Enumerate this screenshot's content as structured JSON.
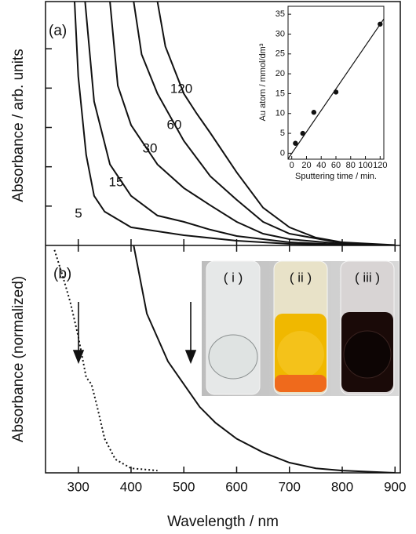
{
  "chart_data": [
    {
      "type": "line",
      "label": "(a)",
      "y_label": "Absorbance / arb. units",
      "xlim": [
        238,
        910
      ],
      "ylim": [
        0,
        6.2
      ],
      "yticks": [
        1,
        2,
        3,
        4,
        5
      ],
      "series": [
        {
          "name": "5",
          "color": "#111111",
          "x": [
            293,
            300,
            315,
            330,
            350,
            400,
            500,
            600,
            700,
            800,
            900
          ],
          "values": [
            6.2,
            4.3,
            2.3,
            1.26,
            0.86,
            0.46,
            0.26,
            0.12,
            0.04,
            0.01,
            0
          ]
        },
        {
          "name": "15",
          "color": "#111111",
          "x": [
            313,
            330,
            360,
            400,
            450,
            500,
            550,
            600,
            700,
            800,
            900
          ],
          "values": [
            6.2,
            3.66,
            2.06,
            1.26,
            0.76,
            0.6,
            0.4,
            0.24,
            0.08,
            0.02,
            0
          ]
        },
        {
          "name": "30",
          "color": "#111111",
          "x": [
            360,
            375,
            400,
            450,
            500,
            550,
            600,
            650,
            700,
            800,
            900
          ],
          "values": [
            6.2,
            4.06,
            3.06,
            2.06,
            1.46,
            1.02,
            0.6,
            0.3,
            0.16,
            0.04,
            0
          ]
        },
        {
          "name": "60",
          "color": "#111111",
          "x": [
            405,
            420,
            450,
            500,
            550,
            600,
            650,
            700,
            800,
            900
          ],
          "values": [
            6.2,
            4.86,
            3.86,
            2.66,
            1.76,
            1.16,
            0.6,
            0.3,
            0.06,
            0
          ]
        },
        {
          "name": "120",
          "color": "#111111",
          "x": [
            450,
            465,
            500,
            524,
            550,
            600,
            650,
            700,
            750,
            800,
            900
          ],
          "values": [
            6.2,
            5.06,
            3.86,
            3.36,
            2.86,
            1.86,
            0.96,
            0.46,
            0.2,
            0.08,
            0.01
          ]
        }
      ]
    },
    {
      "type": "scatter",
      "x_label": "Sputtering time / min.",
      "y_label": "Au atom / mmol/dm³",
      "xlim": [
        -5,
        125
      ],
      "ylim": [
        -1.5,
        37
      ],
      "xticks": [
        0,
        20,
        40,
        60,
        80,
        100,
        120
      ],
      "yticks": [
        0,
        5,
        10,
        15,
        20,
        25,
        30,
        35
      ],
      "x": [
        5,
        15,
        30,
        60,
        120
      ],
      "values": [
        2.5,
        5,
        10.3,
        15.4,
        32.5
      ],
      "color": "#111111",
      "fit": {
        "x": [
          -5,
          125
        ],
        "values": [
          -1.4,
          33.8
        ]
      }
    },
    {
      "type": "line",
      "label": "(b)",
      "y_label": "Absorbance (normalized)",
      "x_label": "Wavelength / nm",
      "xlim": [
        238,
        910
      ],
      "ylim": [
        0,
        1
      ],
      "xticks": [
        300,
        400,
        500,
        600,
        700,
        800,
        900
      ],
      "photo_labels": [
        "( i )",
        "( ii )",
        "( iii )"
      ],
      "series": [
        {
          "style": "dotted",
          "color": "#111111",
          "x": [
            255,
            270,
            285,
            300,
            315,
            325,
            335,
            350,
            370,
            400,
            450
          ],
          "values": [
            0.98,
            0.87,
            0.75,
            0.6,
            0.42,
            0.39,
            0.3,
            0.15,
            0.06,
            0.02,
            0.01
          ]
        },
        {
          "style": "solid",
          "color": "#111111",
          "x": [
            405,
            430,
            470,
            500,
            530,
            560,
            600,
            650,
            700,
            750,
            800,
            900
          ],
          "values": [
            1,
            0.7,
            0.49,
            0.39,
            0.29,
            0.22,
            0.15,
            0.09,
            0.045,
            0.02,
            0.01,
            0
          ]
        }
      ]
    }
  ]
}
